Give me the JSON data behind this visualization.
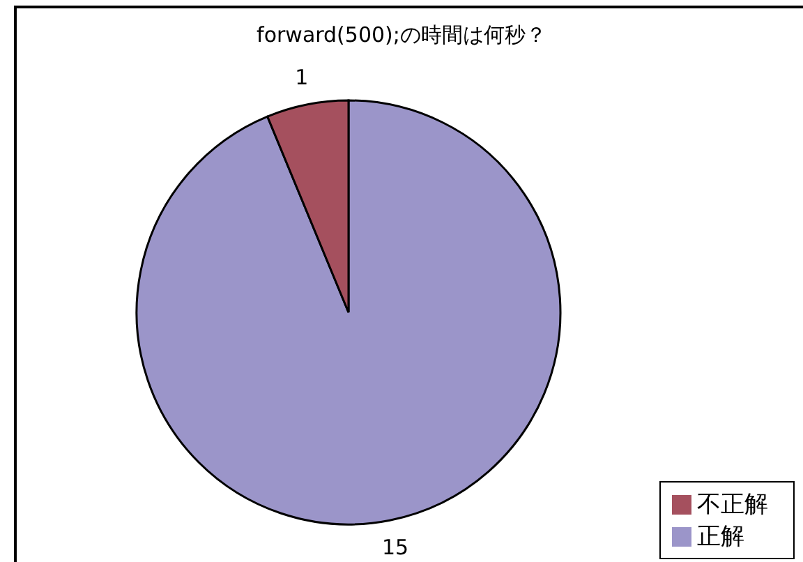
{
  "chart_data": {
    "type": "pie",
    "title": "forward(500);の時間は何秒？",
    "categories": [
      "正解",
      "不正解"
    ],
    "values": [
      15,
      1
    ],
    "colors": [
      "#9b95c9",
      "#a5505e"
    ],
    "data_labels": true,
    "legend": "bottom right"
  }
}
